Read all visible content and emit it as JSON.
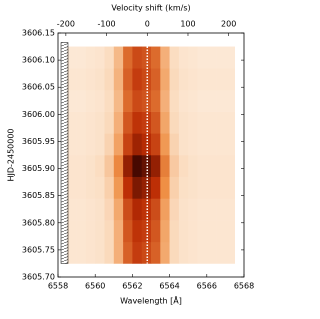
{
  "chart_data": {
    "type": "heatmap",
    "xlabel": "Wavelength [Å]",
    "ylabel": "HJD-2450000",
    "x2label": "Velocity shift (km/s)",
    "xlim": [
      6558,
      6568
    ],
    "xticks": [
      6558,
      6560,
      6562,
      6564,
      6566,
      6568
    ],
    "x2lim": [
      -219.3,
      237.6
    ],
    "x2ticks": [
      -200,
      -100,
      0,
      100,
      200
    ],
    "ylim": [
      3605.7,
      3606.15
    ],
    "yticks": [
      {
        "value": 3605.7,
        "label": "3605.70"
      },
      3605.75,
      {
        "value": 3605.8,
        "label": "3605.80"
      },
      3605.85,
      {
        "value": 3605.9,
        "label": "3605.90"
      },
      3605.95,
      {
        "value": 3606.0,
        "label": "3606.00"
      },
      3606.05,
      {
        "value": 3606.1,
        "label": "3606.10"
      },
      3606.15
    ],
    "x_edges": [
      6558.5,
      6559,
      6559.5,
      6560,
      6560.5,
      6561,
      6561.5,
      6562,
      6562.5,
      6563,
      6563.5,
      6564,
      6564.5,
      6565,
      6565.5,
      6566,
      6566.5,
      6567,
      6567.5
    ],
    "y_edges": [
      3605.725,
      3605.765,
      3605.805,
      3605.845,
      3605.885,
      3605.925,
      3605.965,
      3606.005,
      3606.045,
      3606.085,
      3606.125
    ],
    "values": [
      [
        0.12,
        0.12,
        0.13,
        0.14,
        0.17,
        0.3,
        0.54,
        0.65,
        0.61,
        0.54,
        0.32,
        0.17,
        0.14,
        0.13,
        0.12,
        0.12,
        0.12,
        0.12
      ],
      [
        0.12,
        0.12,
        0.13,
        0.14,
        0.17,
        0.3,
        0.57,
        0.68,
        0.65,
        0.57,
        0.33,
        0.17,
        0.14,
        0.13,
        0.12,
        0.12,
        0.12,
        0.12
      ],
      [
        0.12,
        0.12,
        0.13,
        0.14,
        0.18,
        0.32,
        0.6,
        0.72,
        0.68,
        0.6,
        0.35,
        0.18,
        0.14,
        0.13,
        0.12,
        0.12,
        0.12,
        0.12
      ],
      [
        0.13,
        0.13,
        0.14,
        0.15,
        0.2,
        0.37,
        0.69,
        0.83,
        0.78,
        0.69,
        0.4,
        0.2,
        0.15,
        0.14,
        0.13,
        0.13,
        0.13,
        0.13
      ],
      [
        0.13,
        0.13,
        0.14,
        0.16,
        0.23,
        0.42,
        0.78,
        0.94,
        0.88,
        0.78,
        0.45,
        0.22,
        0.16,
        0.14,
        0.13,
        0.13,
        0.13,
        0.13
      ],
      [
        0.12,
        0.12,
        0.13,
        0.14,
        0.19,
        0.34,
        0.63,
        0.76,
        0.71,
        0.63,
        0.37,
        0.19,
        0.14,
        0.13,
        0.12,
        0.12,
        0.12,
        0.12
      ],
      [
        0.12,
        0.12,
        0.13,
        0.14,
        0.17,
        0.3,
        0.57,
        0.68,
        0.65,
        0.57,
        0.33,
        0.17,
        0.14,
        0.13,
        0.12,
        0.12,
        0.12,
        0.12
      ],
      [
        0.11,
        0.11,
        0.12,
        0.13,
        0.16,
        0.27,
        0.51,
        0.61,
        0.58,
        0.51,
        0.3,
        0.16,
        0.13,
        0.12,
        0.11,
        0.11,
        0.11,
        0.11
      ],
      [
        0.12,
        0.12,
        0.13,
        0.14,
        0.17,
        0.29,
        0.54,
        0.65,
        0.61,
        0.54,
        0.32,
        0.17,
        0.14,
        0.13,
        0.12,
        0.12,
        0.12,
        0.12
      ],
      [
        0.11,
        0.11,
        0.12,
        0.13,
        0.16,
        0.27,
        0.51,
        0.61,
        0.58,
        0.51,
        0.3,
        0.16,
        0.13,
        0.12,
        0.11,
        0.11,
        0.11,
        0.11
      ]
    ],
    "clim": [
      0,
      1
    ],
    "colormap": [
      {
        "value": 0,
        "color": "#ffffff"
      },
      {
        "value": 0.15,
        "color": "#fbe0c6"
      },
      {
        "value": 0.4,
        "color": "#ef8f45"
      },
      {
        "value": 0.7,
        "color": "#bb2c04"
      },
      {
        "value": 1,
        "color": "#2a0000"
      }
    ],
    "rest_wavelength": 6562.8
  }
}
